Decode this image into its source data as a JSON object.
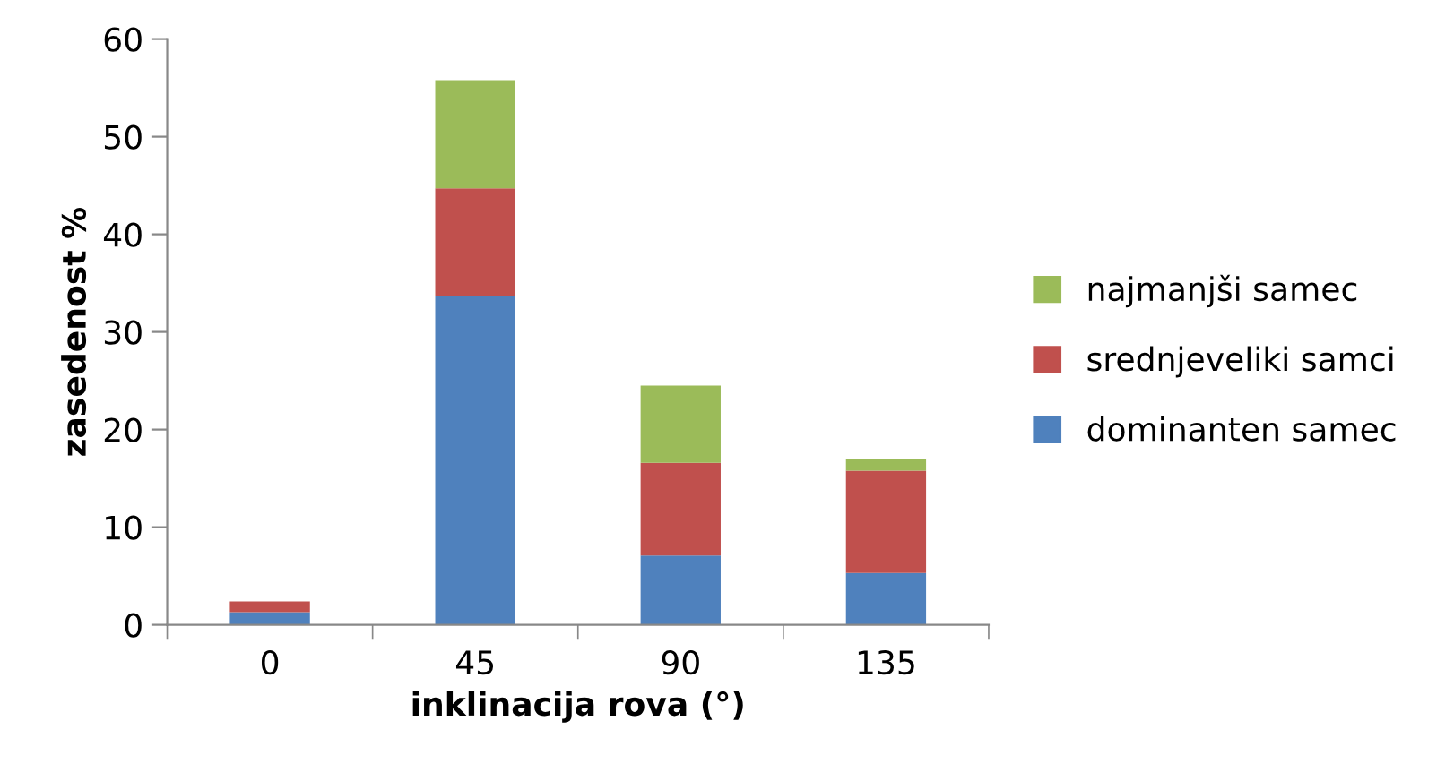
{
  "chart_data": {
    "type": "bar",
    "stacked": true,
    "xlabel": "inklinacija rova (°)",
    "ylabel": "zasedenost %",
    "categories": [
      "0",
      "45",
      "90",
      "135"
    ],
    "series": [
      {
        "name": "dominanten samec",
        "color": "#4f81bd",
        "values": [
          1.3,
          33.7,
          7.1,
          5.3
        ]
      },
      {
        "name": "srednjeveliki samci",
        "color": "#c0504d",
        "values": [
          1.1,
          11.0,
          9.5,
          10.5
        ]
      },
      {
        "name": "najmanjši samec",
        "color": "#9bbb59",
        "values": [
          null,
          11.1,
          7.9,
          1.2
        ]
      }
    ],
    "ylim": [
      0,
      60
    ],
    "yticks": [
      0,
      10,
      20,
      30,
      40,
      50,
      60
    ],
    "grid": false,
    "legend": "right"
  }
}
